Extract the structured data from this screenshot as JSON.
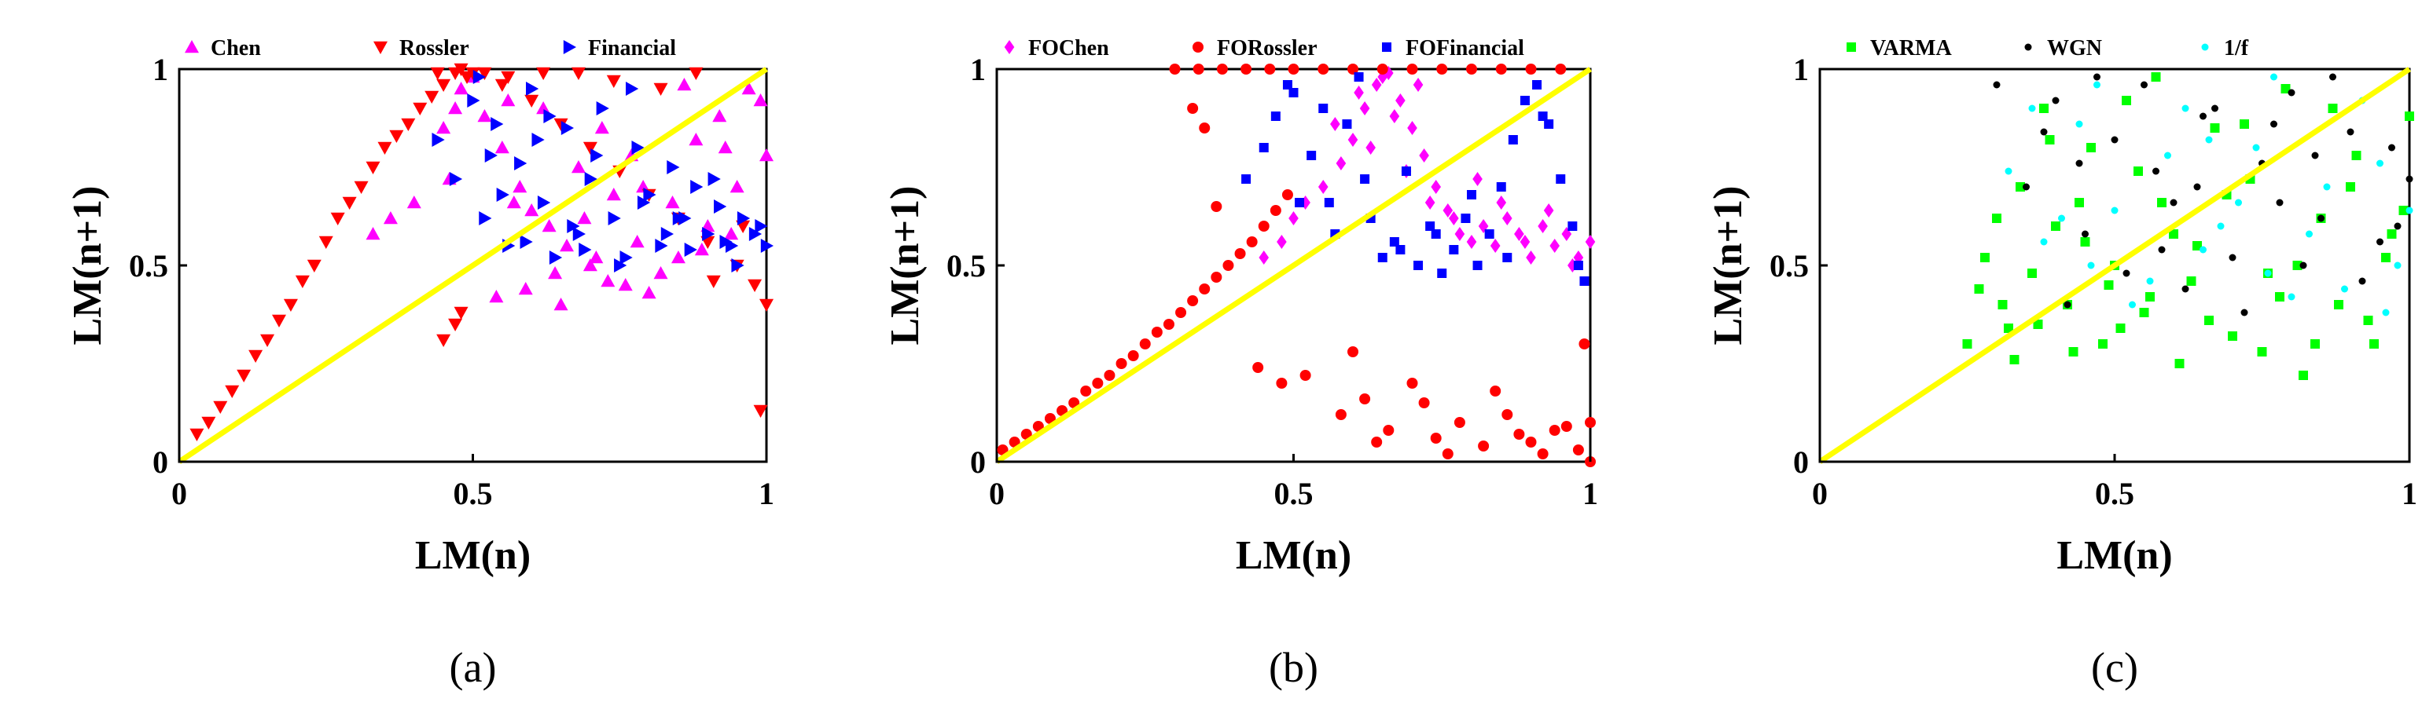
{
  "chart_data": [
    {
      "type": "scatter",
      "caption": "(a)",
      "xlabel": "LM(n)",
      "ylabel": "LM(n+1)",
      "xlim": [
        0,
        1
      ],
      "ylim": [
        0,
        1
      ],
      "xticks": [
        "0",
        "0.5",
        "1"
      ],
      "yticks": [
        "0",
        "0.5",
        "1"
      ],
      "grid": false,
      "legend_position": "top",
      "reference_line": {
        "x": [
          0,
          1
        ],
        "y": [
          0,
          1
        ],
        "color": "#ffff00"
      },
      "series": [
        {
          "name": "Chen",
          "marker": "triangle-up",
          "color": "#ff00ff",
          "x": [
            0.33,
            0.36,
            0.4,
            0.45,
            0.48,
            0.52,
            0.55,
            0.58,
            0.6,
            0.63,
            0.66,
            0.7,
            0.73,
            0.76,
            0.8,
            0.85,
            0.9,
            0.95,
            1.0,
            0.5,
            0.56,
            0.62,
            0.68,
            0.74,
            0.78,
            0.82,
            0.88,
            0.92,
            0.97,
            0.46,
            0.54,
            0.59,
            0.64,
            0.69,
            0.72,
            0.77,
            0.84,
            0.89,
            0.94,
            0.99,
            0.47,
            0.57,
            0.65,
            0.71,
            0.79,
            0.86,
            0.93
          ],
          "y": [
            0.58,
            0.62,
            0.66,
            0.85,
            0.95,
            0.88,
            0.8,
            0.7,
            0.64,
            0.6,
            0.55,
            0.5,
            0.46,
            0.45,
            0.43,
            0.52,
            0.6,
            0.7,
            0.78,
            0.98,
            0.92,
            0.9,
            0.75,
            0.68,
            0.56,
            0.48,
            0.82,
            0.88,
            0.95,
            0.72,
            0.42,
            0.44,
            0.48,
            0.62,
            0.85,
            0.78,
            0.66,
            0.54,
            0.58,
            0.92,
            0.9,
            0.66,
            0.4,
            0.52,
            0.7,
            0.96,
            0.8
          ]
        },
        {
          "name": "Rossler",
          "marker": "triangle-down",
          "color": "#ff0000",
          "x": [
            0.03,
            0.05,
            0.07,
            0.09,
            0.11,
            0.13,
            0.15,
            0.17,
            0.19,
            0.21,
            0.23,
            0.25,
            0.27,
            0.29,
            0.31,
            0.33,
            0.35,
            0.37,
            0.39,
            0.41,
            0.43,
            0.45,
            0.47,
            0.49,
            0.55,
            0.6,
            0.65,
            0.7,
            0.75,
            0.8,
            0.85,
            0.9,
            0.95,
            0.98,
            1.0,
            0.44,
            0.48,
            0.5,
            0.52,
            0.56,
            0.62,
            0.68,
            0.74,
            0.82,
            0.88,
            0.96,
            0.99,
            0.45,
            0.48,
            0.91,
            0.47
          ],
          "y": [
            0.07,
            0.1,
            0.14,
            0.18,
            0.22,
            0.27,
            0.31,
            0.36,
            0.4,
            0.46,
            0.5,
            0.56,
            0.62,
            0.66,
            0.7,
            0.75,
            0.8,
            0.83,
            0.86,
            0.9,
            0.93,
            0.96,
            0.99,
            0.98,
            0.96,
            0.92,
            0.86,
            0.8,
            0.74,
            0.68,
            0.62,
            0.56,
            0.5,
            0.45,
            0.4,
            0.99,
            1.0,
            0.99,
            0.99,
            0.98,
            0.99,
            0.99,
            0.97,
            0.95,
            0.99,
            0.6,
            0.13,
            0.31,
            0.38,
            0.46,
            0.35
          ]
        },
        {
          "name": "Financial",
          "marker": "triangle-right",
          "color": "#0000ff",
          "x": [
            0.44,
            0.47,
            0.5,
            0.52,
            0.54,
            0.56,
            0.58,
            0.6,
            0.62,
            0.64,
            0.66,
            0.68,
            0.7,
            0.72,
            0.74,
            0.76,
            0.78,
            0.8,
            0.82,
            0.84,
            0.86,
            0.88,
            0.9,
            0.92,
            0.94,
            0.96,
            0.98,
            1.0,
            0.51,
            0.55,
            0.59,
            0.63,
            0.67,
            0.71,
            0.75,
            0.79,
            0.83,
            0.87,
            0.91,
            0.95,
            0.99,
            0.53,
            0.61,
            0.69,
            0.77,
            0.85,
            0.93
          ],
          "y": [
            0.82,
            0.72,
            0.92,
            0.62,
            0.86,
            0.55,
            0.76,
            0.95,
            0.66,
            0.52,
            0.85,
            0.58,
            0.72,
            0.9,
            0.62,
            0.52,
            0.8,
            0.68,
            0.55,
            0.75,
            0.62,
            0.7,
            0.58,
            0.65,
            0.55,
            0.62,
            0.58,
            0.55,
            0.98,
            0.68,
            0.56,
            0.88,
            0.6,
            0.78,
            0.5,
            0.66,
            0.58,
            0.54,
            0.72,
            0.5,
            0.6,
            0.78,
            0.82,
            0.54,
            0.95,
            0.62,
            0.56
          ]
        }
      ]
    },
    {
      "type": "scatter",
      "caption": "(b)",
      "xlabel": "LM(n)",
      "ylabel": "LM(n+1)",
      "xlim": [
        0,
        1
      ],
      "ylim": [
        0,
        1
      ],
      "xticks": [
        "0",
        "0.5",
        "1"
      ],
      "yticks": [
        "0",
        "0.5",
        "1"
      ],
      "grid": false,
      "legend_position": "top",
      "reference_line": {
        "x": [
          0,
          1
        ],
        "y": [
          0,
          1
        ],
        "color": "#ffff00"
      },
      "series": [
        {
          "name": "FOChen",
          "marker": "diamond",
          "color": "#ff00ff",
          "x": [
            0.45,
            0.48,
            0.5,
            0.52,
            0.55,
            0.58,
            0.6,
            0.62,
            0.64,
            0.66,
            0.68,
            0.7,
            0.72,
            0.74,
            0.76,
            0.78,
            0.8,
            0.82,
            0.84,
            0.86,
            0.88,
            0.9,
            0.92,
            0.94,
            0.96,
            0.98,
            1.0,
            0.57,
            0.61,
            0.65,
            0.69,
            0.73,
            0.77,
            0.81,
            0.85,
            0.89,
            0.93,
            0.97,
            0.63,
            0.67,
            0.71
          ],
          "y": [
            0.52,
            0.56,
            0.62,
            0.66,
            0.7,
            0.76,
            0.82,
            0.9,
            0.96,
            0.99,
            0.92,
            0.85,
            0.78,
            0.7,
            0.64,
            0.58,
            0.56,
            0.6,
            0.55,
            0.62,
            0.58,
            0.52,
            0.6,
            0.55,
            0.58,
            0.52,
            0.56,
            0.86,
            0.94,
            0.98,
            0.74,
            0.66,
            0.62,
            0.72,
            0.66,
            0.56,
            0.64,
            0.5,
            0.8,
            0.88,
            0.96
          ]
        },
        {
          "name": "FORossler",
          "marker": "circle",
          "color": "#ff0000",
          "x": [
            0.01,
            0.03,
            0.05,
            0.07,
            0.09,
            0.11,
            0.13,
            0.15,
            0.17,
            0.19,
            0.21,
            0.23,
            0.25,
            0.27,
            0.29,
            0.31,
            0.33,
            0.35,
            0.37,
            0.39,
            0.41,
            0.43,
            0.45,
            0.47,
            0.49,
            0.3,
            0.34,
            0.38,
            0.42,
            0.46,
            0.5,
            0.55,
            0.6,
            0.65,
            0.7,
            0.75,
            0.8,
            0.85,
            0.9,
            0.95,
            0.33,
            0.35,
            0.37,
            0.44,
            0.48,
            0.52,
            0.58,
            0.62,
            0.66,
            0.7,
            0.74,
            0.78,
            0.82,
            0.86,
            0.9,
            0.94,
            0.98,
            1.0,
            1.0,
            0.99,
            0.6,
            0.64,
            0.72,
            0.76,
            0.84,
            0.88,
            0.92,
            0.96
          ],
          "y": [
            0.03,
            0.05,
            0.07,
            0.09,
            0.11,
            0.13,
            0.15,
            0.18,
            0.2,
            0.22,
            0.25,
            0.27,
            0.3,
            0.33,
            0.35,
            0.38,
            0.41,
            0.44,
            0.47,
            0.5,
            0.53,
            0.56,
            0.6,
            0.64,
            0.68,
            1.0,
            1.0,
            1.0,
            1.0,
            1.0,
            1.0,
            1.0,
            1.0,
            1.0,
            1.0,
            1.0,
            1.0,
            1.0,
            1.0,
            1.0,
            0.9,
            0.85,
            0.65,
            0.24,
            0.2,
            0.22,
            0.12,
            0.16,
            0.08,
            0.2,
            0.06,
            0.1,
            0.04,
            0.12,
            0.05,
            0.08,
            0.03,
            0.0,
            0.1,
            0.3,
            0.28,
            0.05,
            0.15,
            0.02,
            0.18,
            0.07,
            0.02,
            0.09
          ]
        },
        {
          "name": "FOFinancial",
          "marker": "square",
          "color": "#0000ff",
          "x": [
            0.42,
            0.45,
            0.47,
            0.49,
            0.51,
            0.53,
            0.55,
            0.57,
            0.59,
            0.61,
            0.63,
            0.65,
            0.67,
            0.69,
            0.71,
            0.73,
            0.75,
            0.77,
            0.79,
            0.81,
            0.83,
            0.85,
            0.87,
            0.89,
            0.91,
            0.93,
            0.95,
            0.97,
            0.99,
            0.5,
            0.56,
            0.62,
            0.68,
            0.74,
            0.8,
            0.86,
            0.92,
            0.98
          ],
          "y": [
            0.72,
            0.8,
            0.88,
            0.96,
            0.66,
            0.78,
            0.9,
            0.58,
            0.86,
            0.98,
            0.62,
            0.52,
            0.56,
            0.74,
            0.5,
            0.6,
            0.48,
            0.54,
            0.62,
            0.5,
            0.58,
            0.7,
            0.82,
            0.92,
            0.96,
            0.86,
            0.72,
            0.6,
            0.46,
            0.94,
            0.66,
            0.72,
            0.54,
            0.58,
            0.68,
            0.52,
            0.88,
            0.5
          ]
        }
      ]
    },
    {
      "type": "scatter",
      "caption": "(c)",
      "xlabel": "LM(n)",
      "ylabel": "LM(n+1)",
      "xlim": [
        0,
        1
      ],
      "ylim": [
        0,
        1
      ],
      "xticks": [
        "0",
        "0.5",
        "1"
      ],
      "yticks": [
        "0",
        "0.5",
        "1"
      ],
      "grid": false,
      "legend_position": "top",
      "reference_line": {
        "x": [
          0,
          1
        ],
        "y": [
          0,
          1
        ],
        "color": "#ffff00"
      },
      "series": [
        {
          "name": "VARMA",
          "marker": "square",
          "color": "#00ff00",
          "x": [
            0.25,
            0.28,
            0.31,
            0.34,
            0.37,
            0.4,
            0.43,
            0.46,
            0.49,
            0.52,
            0.55,
            0.58,
            0.61,
            0.64,
            0.67,
            0.7,
            0.73,
            0.76,
            0.79,
            0.82,
            0.85,
            0.88,
            0.91,
            0.94,
            0.97,
            1.0,
            0.27,
            0.33,
            0.39,
            0.45,
            0.51,
            0.57,
            0.63,
            0.69,
            0.75,
            0.81,
            0.87,
            0.93,
            0.99,
            0.3,
            0.36,
            0.42,
            0.48,
            0.54,
            0.6,
            0.66,
            0.72,
            0.78,
            0.84,
            0.9,
            0.96,
            0.32,
            0.38,
            0.44,
            0.5,
            0.56
          ],
          "y": [
            0.3,
            0.52,
            0.4,
            0.7,
            0.35,
            0.6,
            0.28,
            0.8,
            0.45,
            0.92,
            0.38,
            0.66,
            0.25,
            0.55,
            0.85,
            0.32,
            0.72,
            0.48,
            0.95,
            0.22,
            0.62,
            0.4,
            0.78,
            0.3,
            0.58,
            0.88,
            0.44,
            0.26,
            0.82,
            0.56,
            0.34,
            0.98,
            0.46,
            0.68,
            0.28,
            0.5,
            0.9,
            0.36,
            0.64,
            0.62,
            0.48,
            0.4,
            0.3,
            0.74,
            0.58,
            0.36,
            0.86,
            0.42,
            0.3,
            0.7,
            0.52,
            0.34,
            0.9,
            0.66,
            0.5,
            0.42
          ]
        },
        {
          "name": "WGN",
          "marker": "point",
          "color": "#000000",
          "x": [
            0.3,
            0.35,
            0.4,
            0.45,
            0.5,
            0.55,
            0.6,
            0.65,
            0.7,
            0.75,
            0.8,
            0.85,
            0.9,
            0.95,
            1.0,
            0.42,
            0.52,
            0.62,
            0.72,
            0.82,
            0.92,
            0.47,
            0.57,
            0.67,
            0.77,
            0.87,
            0.97,
            0.38,
            0.58,
            0.78,
            0.98,
            0.44,
            0.64,
            0.84
          ],
          "y": [
            0.96,
            0.7,
            0.92,
            0.58,
            0.82,
            0.96,
            0.66,
            0.88,
            0.52,
            0.76,
            0.94,
            0.62,
            0.84,
            0.56,
            0.72,
            0.4,
            0.48,
            0.44,
            0.38,
            0.5,
            0.46,
            0.98,
            0.74,
            0.9,
            0.86,
            0.98,
            0.8,
            0.84,
            0.54,
            0.66,
            0.6,
            0.76,
            0.7,
            0.78
          ]
        },
        {
          "name": "1/f",
          "marker": "point",
          "color": "#00ffff",
          "x": [
            0.32,
            0.38,
            0.44,
            0.5,
            0.56,
            0.62,
            0.68,
            0.74,
            0.8,
            0.86,
            0.92,
            0.98,
            0.41,
            0.47,
            0.53,
            0.59,
            0.65,
            0.71,
            0.77,
            0.83,
            0.89,
            0.95,
            1.0,
            0.36,
            0.46,
            0.66,
            0.76,
            0.96
          ],
          "y": [
            0.74,
            0.56,
            0.86,
            0.64,
            0.46,
            0.9,
            0.6,
            0.8,
            0.42,
            0.7,
            0.92,
            0.5,
            0.62,
            0.96,
            0.4,
            0.78,
            0.54,
            0.66,
            0.98,
            0.58,
            0.44,
            0.76,
            0.64,
            0.9,
            0.5,
            0.82,
            0.48,
            0.38
          ]
        }
      ]
    }
  ]
}
